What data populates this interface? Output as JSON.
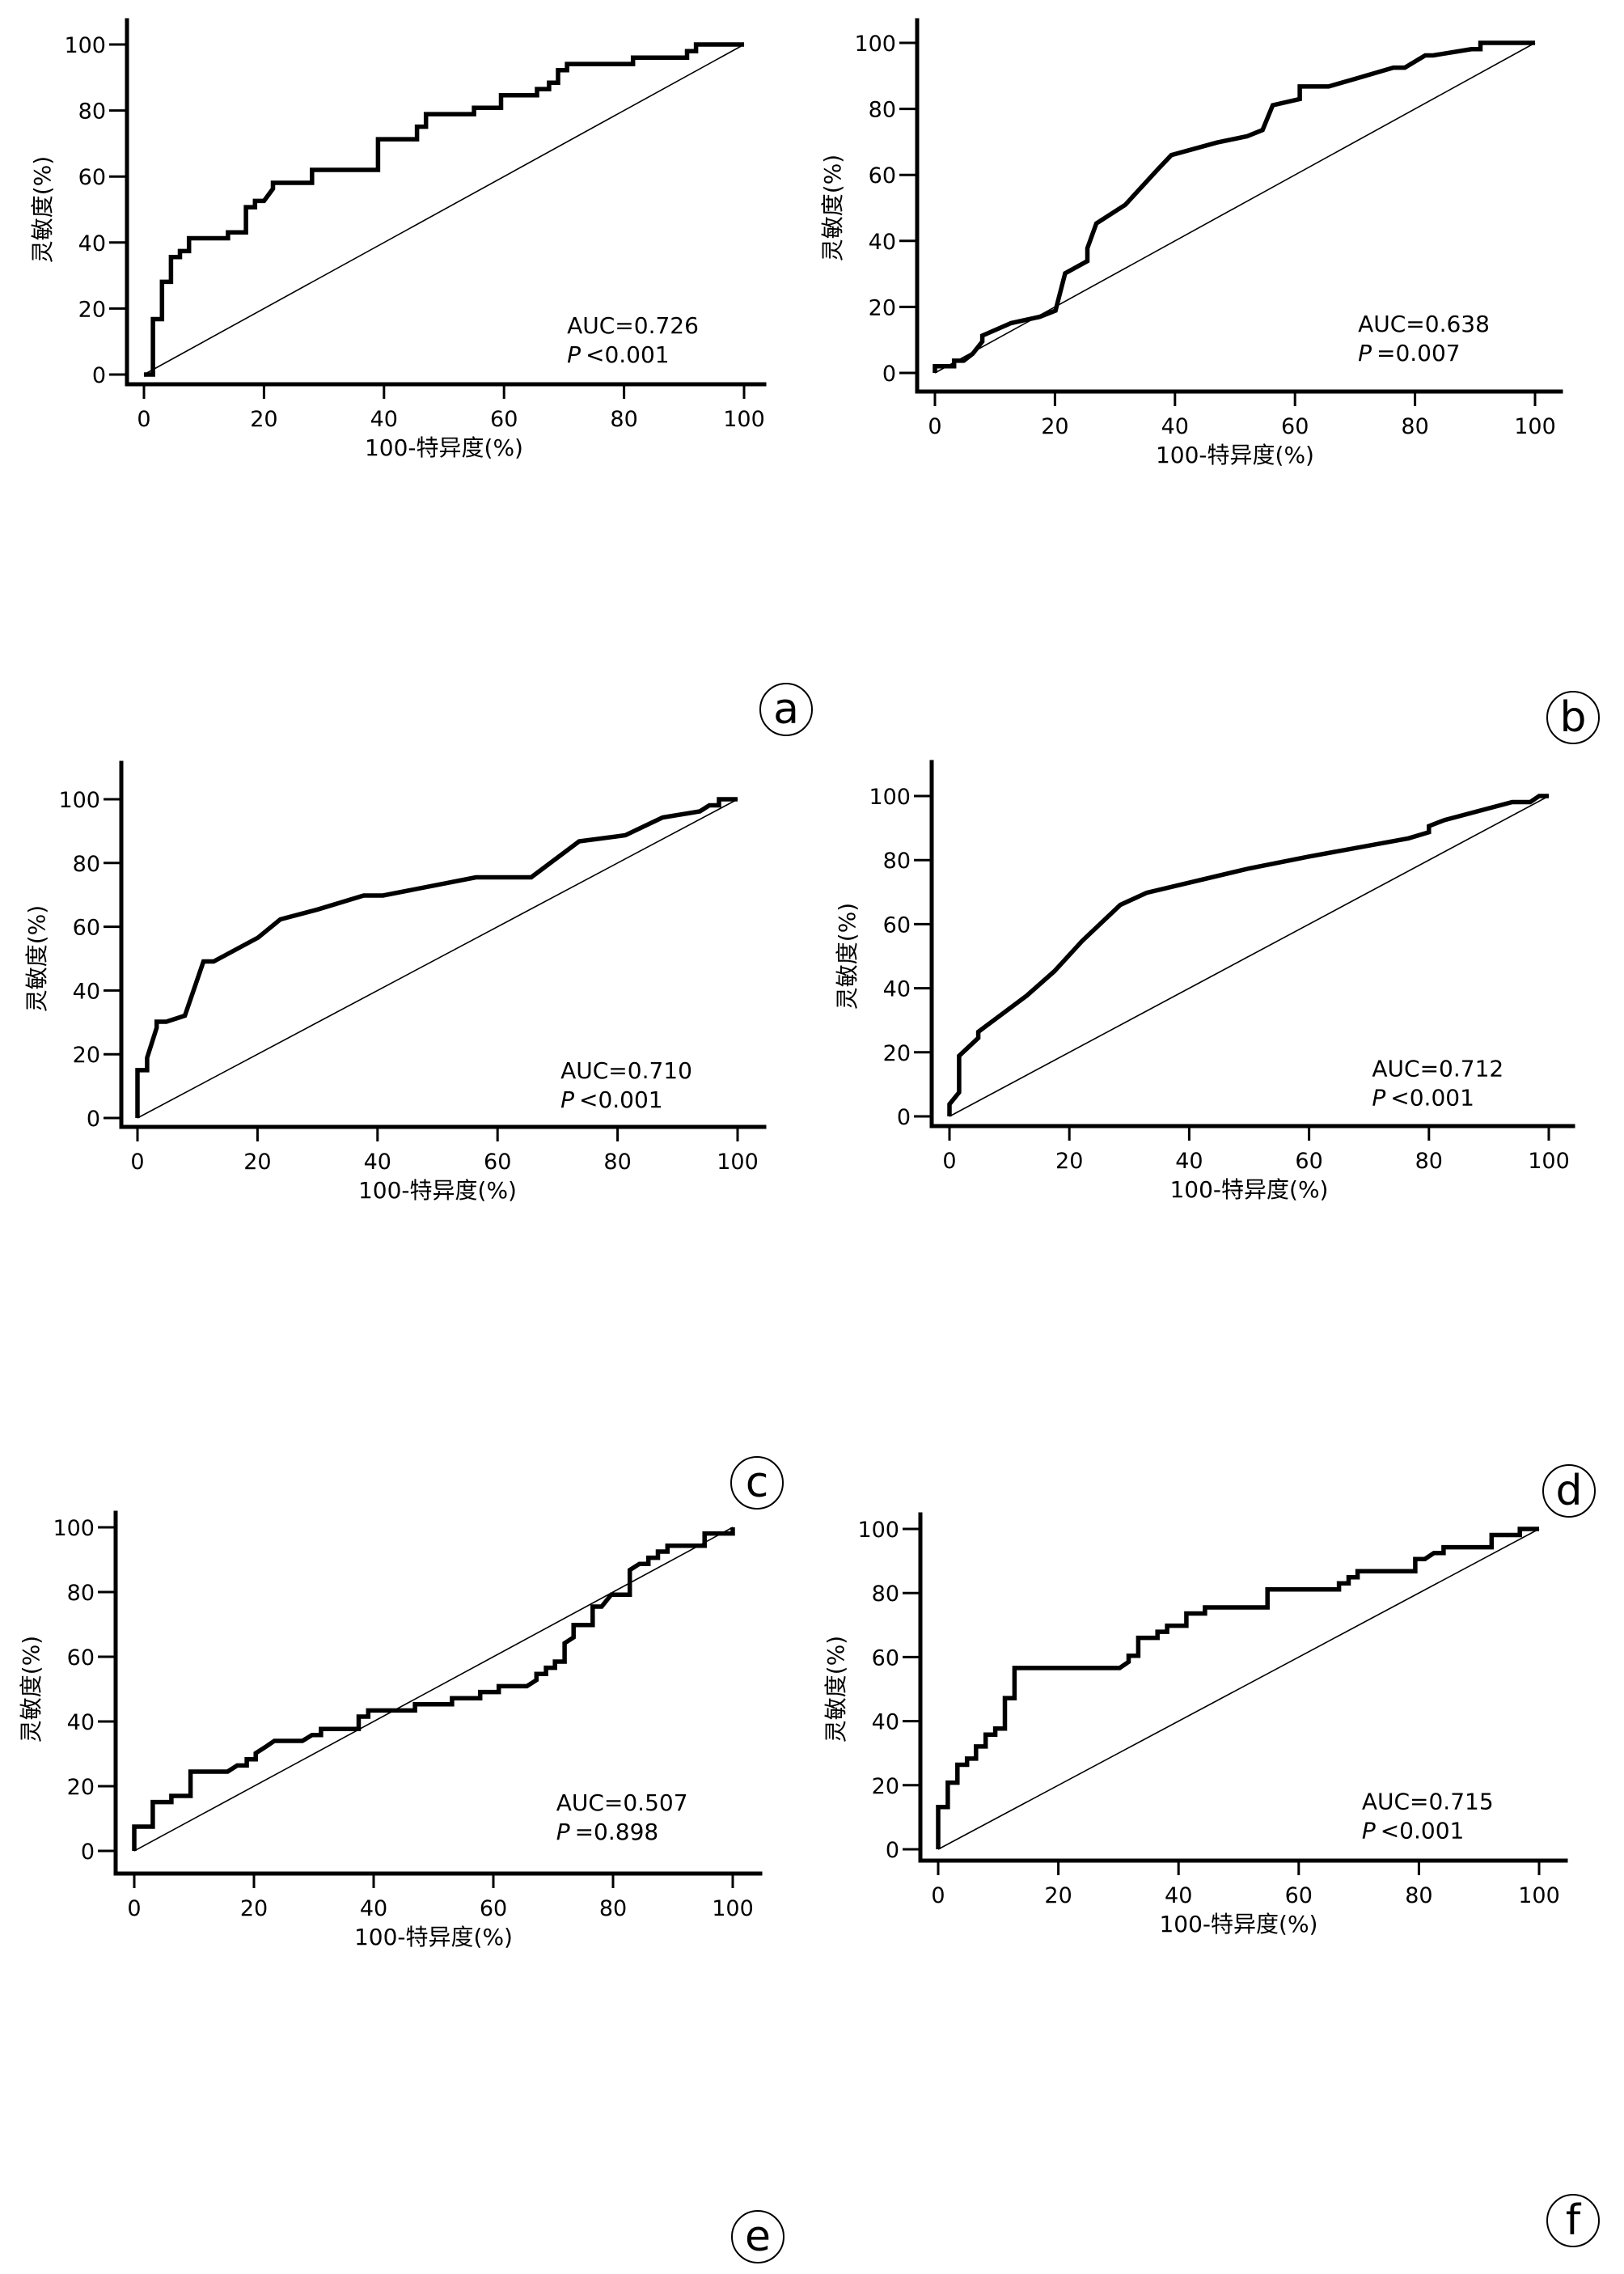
{
  "figure": {
    "line_color": "#000000",
    "background": "#ffffff"
  },
  "chart_data": [
    {
      "panel": "a",
      "type": "line",
      "title": "",
      "xlabel": "100-特异度(%)",
      "ylabel": "灵敏度(%)",
      "xlim": [
        0,
        100
      ],
      "ylim": [
        0,
        100
      ],
      "xticks": [
        "0",
        "20",
        "40",
        "60",
        "80",
        "100"
      ],
      "yticks": [
        "0",
        "20",
        "40",
        "60",
        "80",
        "100"
      ],
      "grid": false,
      "annotation": {
        "auc": "AUC=0.726",
        "p_label": "P",
        "p_value": "<0.001"
      },
      "series": [
        {
          "name": "ROC",
          "style": "step",
          "x": [
            0,
            1.5,
            1.5,
            3,
            3,
            4.5,
            4.5,
            6,
            6,
            7.5,
            7.5,
            14,
            14,
            17,
            17,
            18.5,
            18.5,
            20,
            21.5,
            21.5,
            28,
            28,
            39,
            39,
            45.5,
            45.5,
            47,
            47,
            55,
            55,
            59.5,
            59.5,
            65.5,
            65.5,
            67.5,
            67.5,
            69,
            69,
            70.5,
            70.5,
            81.5,
            81.5,
            90.5,
            90.5,
            92,
            92,
            100
          ],
          "y": [
            0,
            0,
            16.8,
            16.8,
            28.1,
            28.1,
            35.6,
            35.6,
            37.4,
            37.4,
            41.3,
            41.3,
            43.1,
            43.1,
            50.7,
            50.7,
            52.6,
            52.6,
            56.3,
            58.1,
            58.1,
            62.0,
            62.0,
            71.3,
            71.3,
            75.1,
            75.1,
            78.9,
            78.9,
            80.8,
            80.8,
            84.6,
            84.6,
            86.5,
            86.5,
            88.4,
            88.4,
            92.2,
            92.2,
            94.1,
            94.1,
            96.0,
            96.0,
            98.0,
            98.0,
            100,
            100
          ]
        },
        {
          "name": "reference",
          "style": "diagonal",
          "x": [
            0,
            100
          ],
          "y": [
            0,
            100
          ]
        }
      ]
    },
    {
      "panel": "b",
      "type": "line",
      "title": "",
      "xlabel": "100-特异度(%)",
      "ylabel": "灵敏度(%)",
      "xlim": [
        0,
        100
      ],
      "ylim": [
        0,
        100
      ],
      "xticks": [
        "0",
        "20",
        "40",
        "60",
        "80",
        "100"
      ],
      "yticks": [
        "0",
        "20",
        "40",
        "60",
        "80",
        "100"
      ],
      "grid": false,
      "annotation": {
        "auc": "AUC=0.638",
        "p_label": "P",
        "p_value": "=0.007"
      },
      "series": [
        {
          "name": "ROC",
          "style": "polyline",
          "x": [
            0,
            0,
            3.2,
            3.2,
            4.8,
            6.3,
            7.9,
            7.9,
            12.7,
            17.5,
            20.1,
            21.7,
            25.4,
            25.4,
            26.9,
            31.7,
            37.2,
            39.4,
            47.0,
            52.0,
            54.6,
            56.3,
            60.8,
            60.8,
            65.6,
            70.0,
            76.4,
            78.3,
            81.7,
            83.0,
            89.4,
            90.9,
            90.9,
            100
          ],
          "y": [
            0,
            2,
            2,
            3.7,
            3.7,
            5.8,
            9.5,
            11.3,
            15.1,
            17.0,
            18.9,
            30.2,
            33.9,
            37.8,
            45.3,
            50.9,
            61.8,
            66.0,
            69.8,
            71.7,
            73.6,
            81.1,
            83.0,
            86.8,
            86.8,
            89.1,
            92.5,
            92.5,
            96.2,
            96.2,
            98.1,
            98.1,
            100,
            100
          ]
        },
        {
          "name": "reference",
          "style": "diagonal",
          "x": [
            0,
            100
          ],
          "y": [
            0,
            100
          ]
        }
      ]
    },
    {
      "panel": "c",
      "type": "line",
      "title": "",
      "xlabel": "100-特异度(%)",
      "ylabel": "灵敏度(%)",
      "xlim": [
        0,
        100
      ],
      "ylim": [
        0,
        100
      ],
      "xticks": [
        "0",
        "20",
        "40",
        "60",
        "80",
        "100"
      ],
      "yticks": [
        "0",
        "20",
        "40",
        "60",
        "80",
        "100"
      ],
      "grid": false,
      "annotation": {
        "auc": "AUC=0.710",
        "p_label": "P",
        "p_value": "<0.001"
      },
      "series": [
        {
          "name": "ROC",
          "style": "polyline",
          "x": [
            0,
            0,
            1.6,
            1.6,
            3.2,
            3.2,
            4.8,
            7.9,
            11.0,
            12.7,
            20.1,
            23.8,
            30.0,
            37.7,
            40.9,
            56.4,
            65.6,
            73.6,
            81.3,
            87.5,
            93.7,
            95.3,
            96.9,
            96.9,
            100
          ],
          "y": [
            0,
            15.0,
            15.0,
            18.9,
            28.3,
            30.2,
            30.2,
            32.1,
            49.1,
            49.1,
            56.6,
            62.3,
            65.4,
            69.8,
            69.8,
            75.5,
            75.5,
            86.8,
            88.7,
            94.3,
            96.2,
            98.1,
            98.1,
            100,
            100
          ]
        },
        {
          "name": "reference",
          "style": "diagonal",
          "x": [
            0,
            100
          ],
          "y": [
            0,
            100
          ]
        }
      ]
    },
    {
      "panel": "d",
      "type": "line",
      "title": "",
      "xlabel": "100-特异度(%)",
      "ylabel": "灵敏度(%)",
      "xlim": [
        0,
        100
      ],
      "ylim": [
        0,
        100
      ],
      "xticks": [
        "0",
        "20",
        "40",
        "60",
        "80",
        "100"
      ],
      "yticks": [
        "0",
        "20",
        "40",
        "60",
        "80",
        "100"
      ],
      "grid": false,
      "annotation": {
        "auc": "AUC=0.712",
        "p_label": "P",
        "p_value": "<0.001"
      },
      "series": [
        {
          "name": "ROC",
          "style": "polyline",
          "x": [
            0,
            0,
            1.6,
            1.6,
            4.8,
            4.8,
            12.9,
            17.5,
            22.1,
            28.5,
            32.9,
            50.0,
            60.0,
            76.6,
            80.0,
            80.0,
            82.6,
            93.9,
            96.9,
            98.4,
            100
          ],
          "y": [
            0,
            3.8,
            7.5,
            18.9,
            24.5,
            26.4,
            37.7,
            45.3,
            54.7,
            66.0,
            69.8,
            77.4,
            81.1,
            86.8,
            88.7,
            90.6,
            92.5,
            98.1,
            98.1,
            100,
            100
          ]
        },
        {
          "name": "reference",
          "style": "diagonal",
          "x": [
            0,
            100
          ],
          "y": [
            0,
            100
          ]
        }
      ]
    },
    {
      "panel": "e",
      "type": "line",
      "title": "",
      "xlabel": "100-特异度(%)",
      "ylabel": "灵敏度(%)",
      "xlim": [
        0,
        100
      ],
      "ylim": [
        0,
        100
      ],
      "xticks": [
        "0",
        "20",
        "40",
        "60",
        "80",
        "100"
      ],
      "yticks": [
        "0",
        "20",
        "40",
        "60",
        "80",
        "100"
      ],
      "grid": false,
      "annotation": {
        "auc": "AUC=0.507",
        "p_label": "P",
        "p_value": "=0.898"
      },
      "series": [
        {
          "name": "ROC",
          "style": "polyline",
          "x": [
            0,
            0,
            3.1,
            3.1,
            6.2,
            6.2,
            9.4,
            9.4,
            15.6,
            17.2,
            18.8,
            18.8,
            20.3,
            20.3,
            21.9,
            21.9,
            23.4,
            23.4,
            28.1,
            29.7,
            31.2,
            31.2,
            37.5,
            37.5,
            39.1,
            39.1,
            46.9,
            46.9,
            53.1,
            53.1,
            57.8,
            57.8,
            60.9,
            60.9,
            65.6,
            67.2,
            67.2,
            68.8,
            68.8,
            70.3,
            70.3,
            71.9,
            71.9,
            73.4,
            73.4,
            76.6,
            76.6,
            78.1,
            79.7,
            82.8,
            82.8,
            84.4,
            85.9,
            85.9,
            87.5,
            87.5,
            89.1,
            89.1,
            95.3,
            95.3,
            100,
            100
          ],
          "y": [
            0,
            7.5,
            7.5,
            15.1,
            15.1,
            17.0,
            17.0,
            24.5,
            24.5,
            26.4,
            26.4,
            28.3,
            28.3,
            30.2,
            32.1,
            32.1,
            34.0,
            34.0,
            34.0,
            35.8,
            35.8,
            37.7,
            37.7,
            41.5,
            41.5,
            43.4,
            43.4,
            45.3,
            45.3,
            47.2,
            47.2,
            49.1,
            49.1,
            50.9,
            50.9,
            52.8,
            54.7,
            54.7,
            56.6,
            56.6,
            58.5,
            58.5,
            64.2,
            66.0,
            69.8,
            69.8,
            75.5,
            75.5,
            79.2,
            79.2,
            86.8,
            88.7,
            88.7,
            90.6,
            90.6,
            92.5,
            92.5,
            94.3,
            94.3,
            98.1,
            98.1,
            100
          ]
        },
        {
          "name": "reference",
          "style": "diagonal",
          "x": [
            0,
            100
          ],
          "y": [
            0,
            100
          ]
        }
      ]
    },
    {
      "panel": "f",
      "type": "line",
      "title": "",
      "xlabel": "100-特异度(%)",
      "ylabel": "灵敏度(%)",
      "xlim": [
        0,
        100
      ],
      "ylim": [
        0,
        100
      ],
      "xticks": [
        "0",
        "20",
        "40",
        "60",
        "80",
        "100"
      ],
      "yticks": [
        "0",
        "20",
        "40",
        "60",
        "80",
        "100"
      ],
      "grid": false,
      "annotation": {
        "auc": "AUC=0.715",
        "p_label": "P",
        "p_value": "<0.001"
      },
      "series": [
        {
          "name": "ROC",
          "style": "step",
          "x": [
            0,
            0,
            1.6,
            1.6,
            3.2,
            3.2,
            4.8,
            4.8,
            6.3,
            6.3,
            7.9,
            7.9,
            9.5,
            9.5,
            11.1,
            11.1,
            12.7,
            12.7,
            30.2,
            31.7,
            31.7,
            33.3,
            33.3,
            36.5,
            36.5,
            38.1,
            38.1,
            41.3,
            41.3,
            44.4,
            44.4,
            54.8,
            54.8,
            66.7,
            66.7,
            68.3,
            68.3,
            69.8,
            69.8,
            79.4,
            79.4,
            81.0,
            82.5,
            84.1,
            84.1,
            92.1,
            92.1,
            96.8,
            96.8,
            100
          ],
          "y": [
            0,
            13.2,
            13.2,
            20.8,
            20.8,
            26.4,
            26.4,
            28.3,
            28.3,
            32.1,
            32.1,
            35.8,
            35.8,
            37.7,
            37.7,
            47.2,
            47.2,
            56.6,
            56.6,
            58.5,
            60.4,
            60.4,
            66.0,
            66.0,
            67.9,
            67.9,
            69.8,
            69.8,
            73.6,
            73.6,
            75.5,
            75.5,
            81.1,
            81.1,
            83.0,
            83.0,
            84.9,
            84.9,
            86.8,
            86.8,
            90.6,
            90.6,
            92.5,
            92.5,
            94.3,
            94.3,
            98.1,
            98.1,
            100,
            100
          ]
        },
        {
          "name": "reference",
          "style": "diagonal",
          "x": [
            0,
            100
          ],
          "y": [
            0,
            100
          ]
        }
      ]
    }
  ]
}
